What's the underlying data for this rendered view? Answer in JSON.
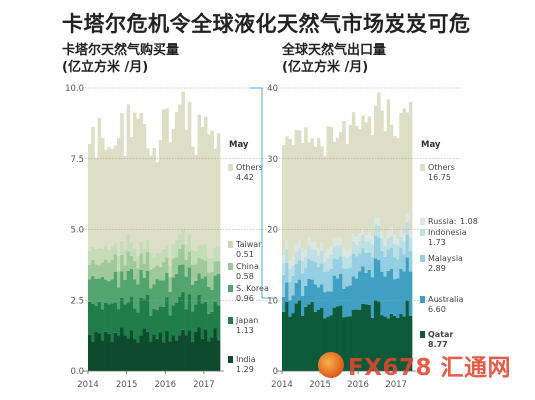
{
  "title": "卡塔尔危机令全球液化天然气市场岌岌可危",
  "colors": {
    "others": "#dcdfc6",
    "taiwan": "#c5dcb8",
    "china": "#9fc99a",
    "skorea": "#53a46f",
    "japan": "#1f7e49",
    "india": "#0e4a2c",
    "russia": "#dde7e1",
    "indonesia": "#bfe0e3",
    "malaysia": "#95cfe1",
    "australia": "#3fa0c3",
    "qatar": "#0d5a3a",
    "divider": "#58a9c9"
  },
  "chart_data": [
    {
      "type": "area",
      "title": "卡塔尔天然气购买量",
      "unit": "(亿立方米 /月)",
      "ylim": [
        0,
        10
      ],
      "yticks": [
        "0.0",
        "2.5",
        "5.0",
        "7.5",
        "10.0"
      ],
      "xticks": [
        "2014",
        "2015",
        "2016",
        "2017"
      ],
      "x_range": [
        "2014-01",
        "2017-05"
      ],
      "legend_header": "May",
      "series": [
        {
          "key": "india",
          "name": "India",
          "value": "1.29",
          "may": 1.29
        },
        {
          "key": "japan",
          "name": "Japan",
          "value": "1.13",
          "may": 1.13
        },
        {
          "key": "skorea",
          "name": "S. Korea",
          "value": "0.96",
          "may": 0.96
        },
        {
          "key": "china",
          "name": "China",
          "value": "0.58",
          "may": 0.58
        },
        {
          "key": "taiwan",
          "name": "Taiwan",
          "value": "0.51",
          "may": 0.51
        },
        {
          "key": "others",
          "name": "Others",
          "value": "4.42",
          "may": 4.42
        }
      ]
    },
    {
      "type": "area",
      "title": "全球天然气出口量",
      "unit": "(亿立方米 /月)",
      "ylim": [
        0,
        40
      ],
      "yticks": [
        "0",
        "10",
        "20",
        "30",
        "40"
      ],
      "xticks": [
        "2014",
        "2015",
        "2016",
        "2017"
      ],
      "x_range": [
        "2014-01",
        "2017-05"
      ],
      "legend_header": "May",
      "series": [
        {
          "key": "qatar",
          "name": "Qatar",
          "value": "8.77",
          "may": 8.77
        },
        {
          "key": "australia",
          "name": "Australia",
          "value": "6.60",
          "may": 6.6
        },
        {
          "key": "malaysia",
          "name": "Malaysia",
          "value": "2.89",
          "may": 2.89
        },
        {
          "key": "indonesia",
          "name": "Indonesia",
          "value": "1.73",
          "may": 1.73
        },
        {
          "key": "russia",
          "name": "Russia:",
          "value": "1.08",
          "may": 1.08
        },
        {
          "key": "others",
          "name": "Others",
          "value": "16.75",
          "may": 16.75
        }
      ]
    }
  ],
  "watermark": "FX678 汇通网"
}
